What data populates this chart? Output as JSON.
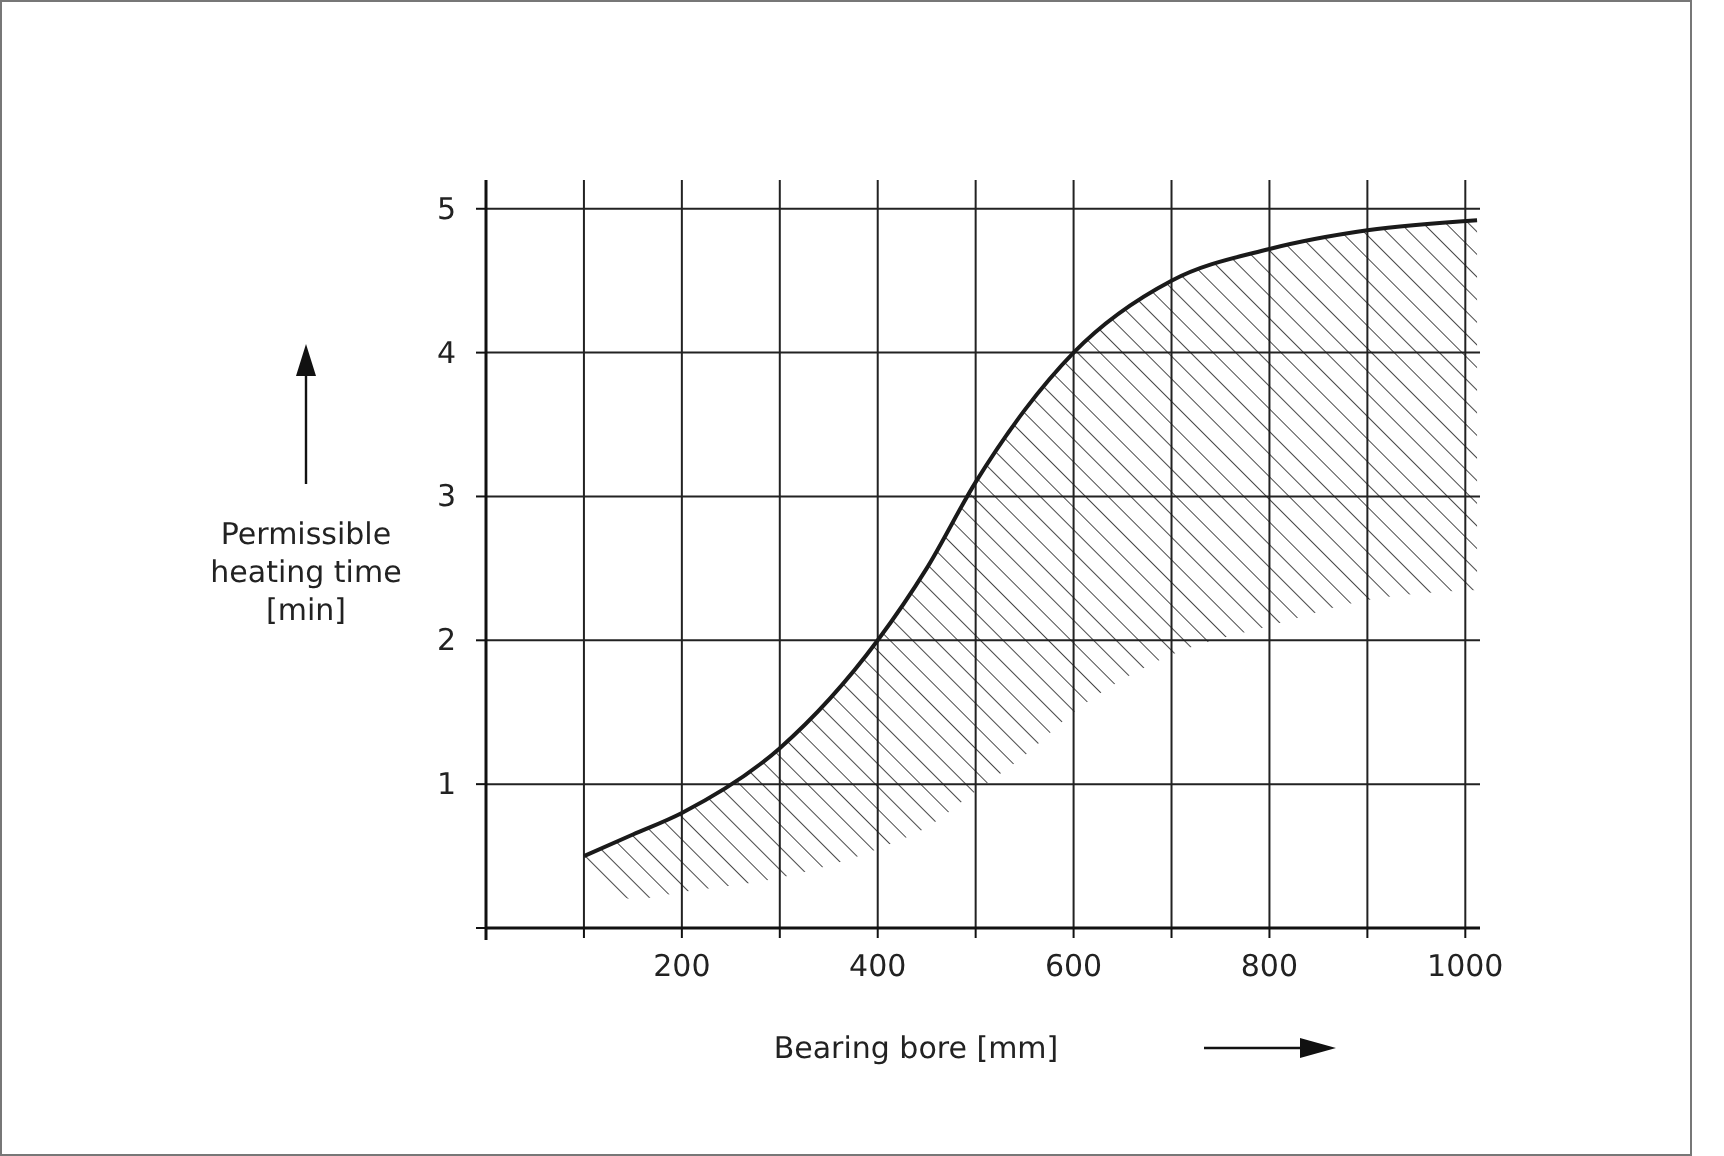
{
  "chart_data": {
    "type": "line",
    "xlabel": "Bearing bore [mm]",
    "ylabel": "Permissible\nheating time\n[min]",
    "x": [
      100,
      150,
      200,
      300,
      400,
      450,
      500,
      550,
      600,
      700,
      800,
      900,
      1012
    ],
    "series": [
      {
        "color": "#1a1a1a",
        "values": [
          0.5,
          0.65,
          0.8,
          1.25,
          2.0,
          2.5,
          3.1,
          3.6,
          4.0,
          4.5,
          4.72,
          4.85,
          4.92
        ],
        "lower": [
          0.5,
          0.2,
          0.25,
          0.35,
          0.55,
          0.7,
          0.95,
          1.2,
          1.5,
          1.9,
          2.1,
          2.28,
          2.35
        ],
        "upper": [
          0.5,
          0.65,
          0.8,
          1.25,
          2.0,
          2.5,
          3.1,
          3.6,
          4.0,
          4.5,
          4.72,
          4.85,
          4.92
        ]
      }
    ],
    "xlim": [
      0,
      1015
    ],
    "ylim": [
      0,
      5.2
    ],
    "xticks": [
      {
        "value": 100,
        "label": null
      },
      200,
      {
        "value": 300,
        "label": null
      },
      400,
      {
        "value": 500,
        "label": null
      },
      600,
      {
        "value": 700,
        "label": null
      },
      800,
      {
        "value": 900,
        "label": null
      },
      1000
    ],
    "yticks": [
      {
        "value": 0,
        "label": null
      },
      1,
      2,
      3,
      4,
      5
    ],
    "grid": true,
    "marker": "none",
    "line_style": "solid"
  }
}
